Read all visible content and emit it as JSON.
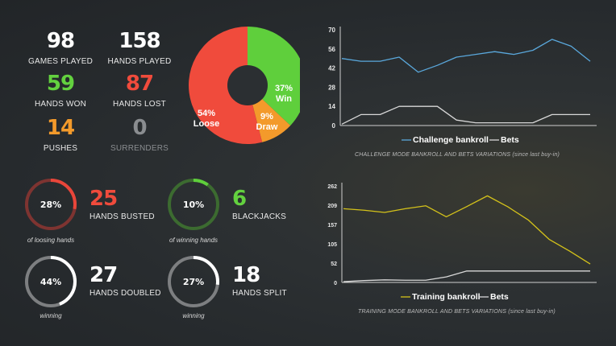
{
  "stats": [
    {
      "value": "98",
      "label": "GAMES PLAYED",
      "color": "#ffffff"
    },
    {
      "value": "158",
      "label": "HANDS PLAYED",
      "color": "#ffffff"
    },
    {
      "value": "59",
      "label": "HANDS WON",
      "color": "#63d13f"
    },
    {
      "value": "87",
      "label": "HANDS LOST",
      "color": "#f04b3c"
    },
    {
      "value": "14",
      "label": "PUSHES",
      "color": "#f39a2b"
    },
    {
      "value": "0",
      "label": "SURRENDERS",
      "color": "#8a8d90"
    }
  ],
  "donut": {
    "slices": [
      {
        "name": "Win",
        "percent": "37%",
        "value": 37,
        "color": "#5fcf3c"
      },
      {
        "name": "Draw",
        "percent": "9%",
        "value": 9,
        "color": "#f39a2b"
      },
      {
        "name": "Loose",
        "percent": "54%",
        "value": 54,
        "color": "#f04b3c"
      }
    ]
  },
  "rings": [
    {
      "percent": "28%",
      "fraction": 0.28,
      "color": "#e8463a",
      "track": "#7e3431",
      "caption": "of loosing hands",
      "value": "25",
      "label": "HANDS BUSTED",
      "value_color": "#f04b3c"
    },
    {
      "percent": "10%",
      "fraction": 0.1,
      "color": "#5fcf3c",
      "track": "#3c6b30",
      "caption": "of winning hands",
      "value": "6",
      "label": "BLACKJACKS",
      "value_color": "#63d13f"
    },
    {
      "percent": "44%",
      "fraction": 0.44,
      "color": "#ffffff",
      "track": "#7d7f81",
      "caption": "winning",
      "value": "27",
      "label": "HANDS DOUBLED",
      "value_color": "#ffffff"
    },
    {
      "percent": "27%",
      "fraction": 0.27,
      "color": "#ffffff",
      "track": "#7d7f81",
      "caption": "winning",
      "value": "18",
      "label": "HANDS SPLIT",
      "value_color": "#ffffff"
    }
  ],
  "chart_data": [
    {
      "type": "line",
      "caption": "CHALLENGE MODE BANKROLL AND BETS VARIATIONS (since last buy-in)",
      "yticks": [
        "70",
        "56",
        "42",
        "28",
        "14",
        "0"
      ],
      "ylim": [
        0,
        70
      ],
      "x": [
        0,
        1,
        2,
        3,
        4,
        5,
        6,
        7,
        8,
        9,
        10,
        11,
        12,
        13
      ],
      "series": [
        {
          "name": "Challenge bankroll",
          "color": "#5aa8dc",
          "values": [
            49,
            47,
            47,
            50,
            39,
            44,
            50,
            52,
            54,
            52,
            55,
            63,
            58,
            47
          ]
        },
        {
          "name": "Bets",
          "color": "#d8d8d8",
          "values": [
            1,
            8,
            8,
            14,
            14,
            14,
            4,
            2,
            2,
            2,
            2,
            8,
            8,
            8
          ]
        }
      ],
      "legend": "bottom"
    },
    {
      "type": "line",
      "caption": "TRAINING MODE BANKROLL AND BETS VARIATIONS (since last buy-in)",
      "yticks": [
        "262",
        "209",
        "157",
        "105",
        "52",
        "0"
      ],
      "ylim": [
        0,
        262
      ],
      "x": [
        0,
        1,
        2,
        3,
        4,
        5,
        6,
        7,
        8,
        9,
        10,
        11,
        12
      ],
      "series": [
        {
          "name": "Training bankroll",
          "color": "#d4c21a",
          "values": [
            200,
            196,
            190,
            200,
            208,
            178,
            206,
            235,
            205,
            169,
            117,
            85,
            50
          ]
        },
        {
          "name": "Bets",
          "color": "#d8d8d8",
          "values": [
            2,
            5,
            7,
            6,
            6,
            15,
            31,
            31,
            31,
            31,
            31,
            31,
            31
          ]
        }
      ],
      "legend": "bottom"
    }
  ]
}
